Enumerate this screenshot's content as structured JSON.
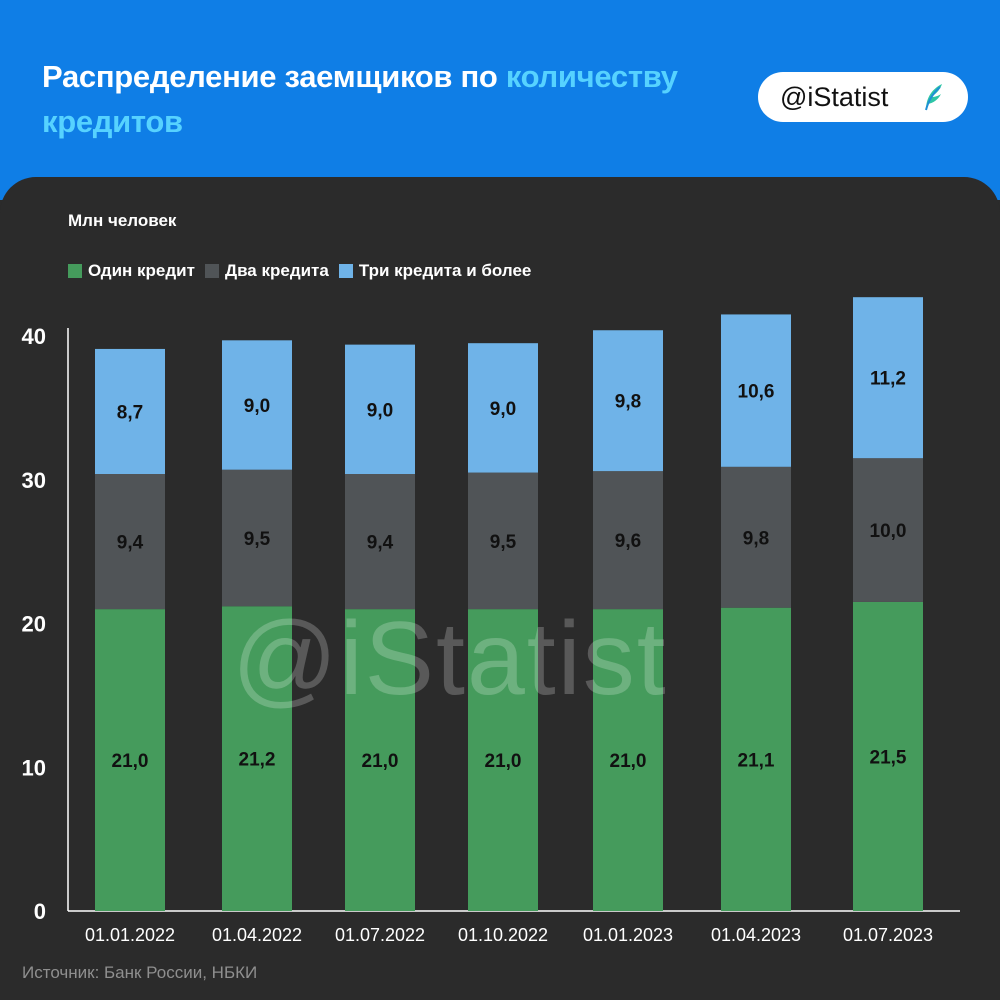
{
  "header": {
    "title_main": "Распределение заемщиков по ",
    "title_accent_1": "количеству",
    "title_accent_2": "кредитов",
    "badge_text": "@iStatist",
    "badge_icon": "feather-logo-icon"
  },
  "chart_data": {
    "type": "bar",
    "stacked": true,
    "ylabel": "Млн человек",
    "ylim": [
      0,
      40
    ],
    "yticks": [
      0,
      10,
      20,
      30,
      40
    ],
    "categories": [
      "01.01.2022",
      "01.04.2022",
      "01.07.2022",
      "01.10.2022",
      "01.01.2023",
      "01.04.2023",
      "01.07.2023"
    ],
    "series": [
      {
        "name": "Один кредит",
        "color": "#459b5c",
        "values": [
          21.0,
          21.2,
          21.0,
          21.0,
          21.0,
          21.1,
          21.5
        ],
        "labels": [
          "21,0",
          "21,2",
          "21,0",
          "21,0",
          "21,0",
          "21,1",
          "21,5"
        ]
      },
      {
        "name": "Два кредита",
        "color": "#505457",
        "values": [
          9.4,
          9.5,
          9.4,
          9.5,
          9.6,
          9.8,
          10.0
        ],
        "labels": [
          "9,4",
          "9,5",
          "9,4",
          "9,5",
          "9,6",
          "9,8",
          "10,0"
        ]
      },
      {
        "name": "Три кредита и более",
        "color": "#6fb3e8",
        "values": [
          8.7,
          9.0,
          9.0,
          9.0,
          9.8,
          10.6,
          11.2
        ],
        "labels": [
          "8,7",
          "9,0",
          "9,0",
          "9,0",
          "9,8",
          "10,6",
          "11,2"
        ]
      }
    ],
    "legend_position": "top-left",
    "grid": false
  },
  "watermark": "@iStatist",
  "source": "Источник: Банк России, НБКИ"
}
